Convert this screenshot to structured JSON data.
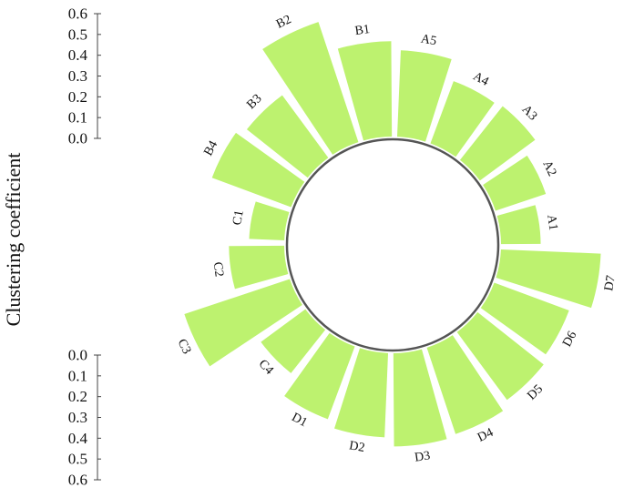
{
  "chart_data": {
    "type": "bar",
    "layout": "radial",
    "ylabel": "Clustering coefficient",
    "ylim": [
      0,
      0.6
    ],
    "yticks": [
      "0.0",
      "0.1",
      "0.2",
      "0.3",
      "0.4",
      "0.5",
      "0.6"
    ],
    "bar_color": "#bdf26f",
    "ring_color": "#555555",
    "categories": [
      "A1",
      "A2",
      "A3",
      "A4",
      "A5",
      "B1",
      "B2",
      "B3",
      "B4",
      "C1",
      "C2",
      "C3",
      "C4",
      "D1",
      "D2",
      "D3",
      "D4",
      "D5",
      "D6",
      "D7"
    ],
    "values": [
      0.19,
      0.25,
      0.32,
      0.31,
      0.4,
      0.44,
      0.58,
      0.36,
      0.39,
      0.17,
      0.26,
      0.51,
      0.26,
      0.36,
      0.39,
      0.43,
      0.42,
      0.39,
      0.37,
      0.46
    ]
  }
}
